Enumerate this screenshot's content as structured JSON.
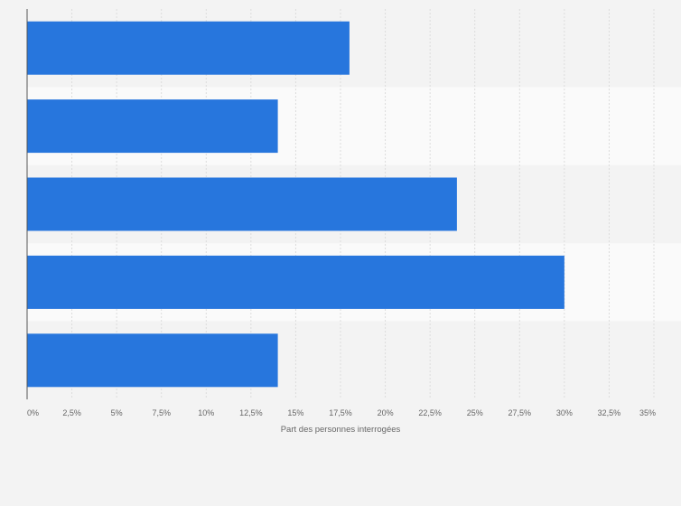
{
  "chart_data": {
    "type": "bar",
    "orientation": "horizontal",
    "categories": [
      "",
      "",
      "",
      "",
      ""
    ],
    "values": [
      18,
      14,
      24,
      30,
      14
    ],
    "title": "",
    "xlabel": "Part des personnes interrogées",
    "ylabel": "",
    "xlim": [
      0,
      35
    ],
    "x_ticks": [
      0,
      2.5,
      5,
      7.5,
      10,
      12.5,
      15,
      17.5,
      20,
      22.5,
      25,
      27.5,
      30,
      32.5,
      35
    ],
    "x_tick_labels": [
      "0%",
      "2,5%",
      "5%",
      "7,5%",
      "10%",
      "12,5%",
      "15%",
      "17,5%",
      "20%",
      "22,5%",
      "25%",
      "27,5%",
      "30%",
      "32,5%",
      "35%"
    ],
    "grid": true,
    "legend": "none",
    "colors": {
      "bar": "#2776dd",
      "band_light": "#fafafa",
      "band_dark": "#f3f3f3",
      "grid": "#dcdcdc",
      "axis": "#555555",
      "text": "#666666"
    }
  }
}
